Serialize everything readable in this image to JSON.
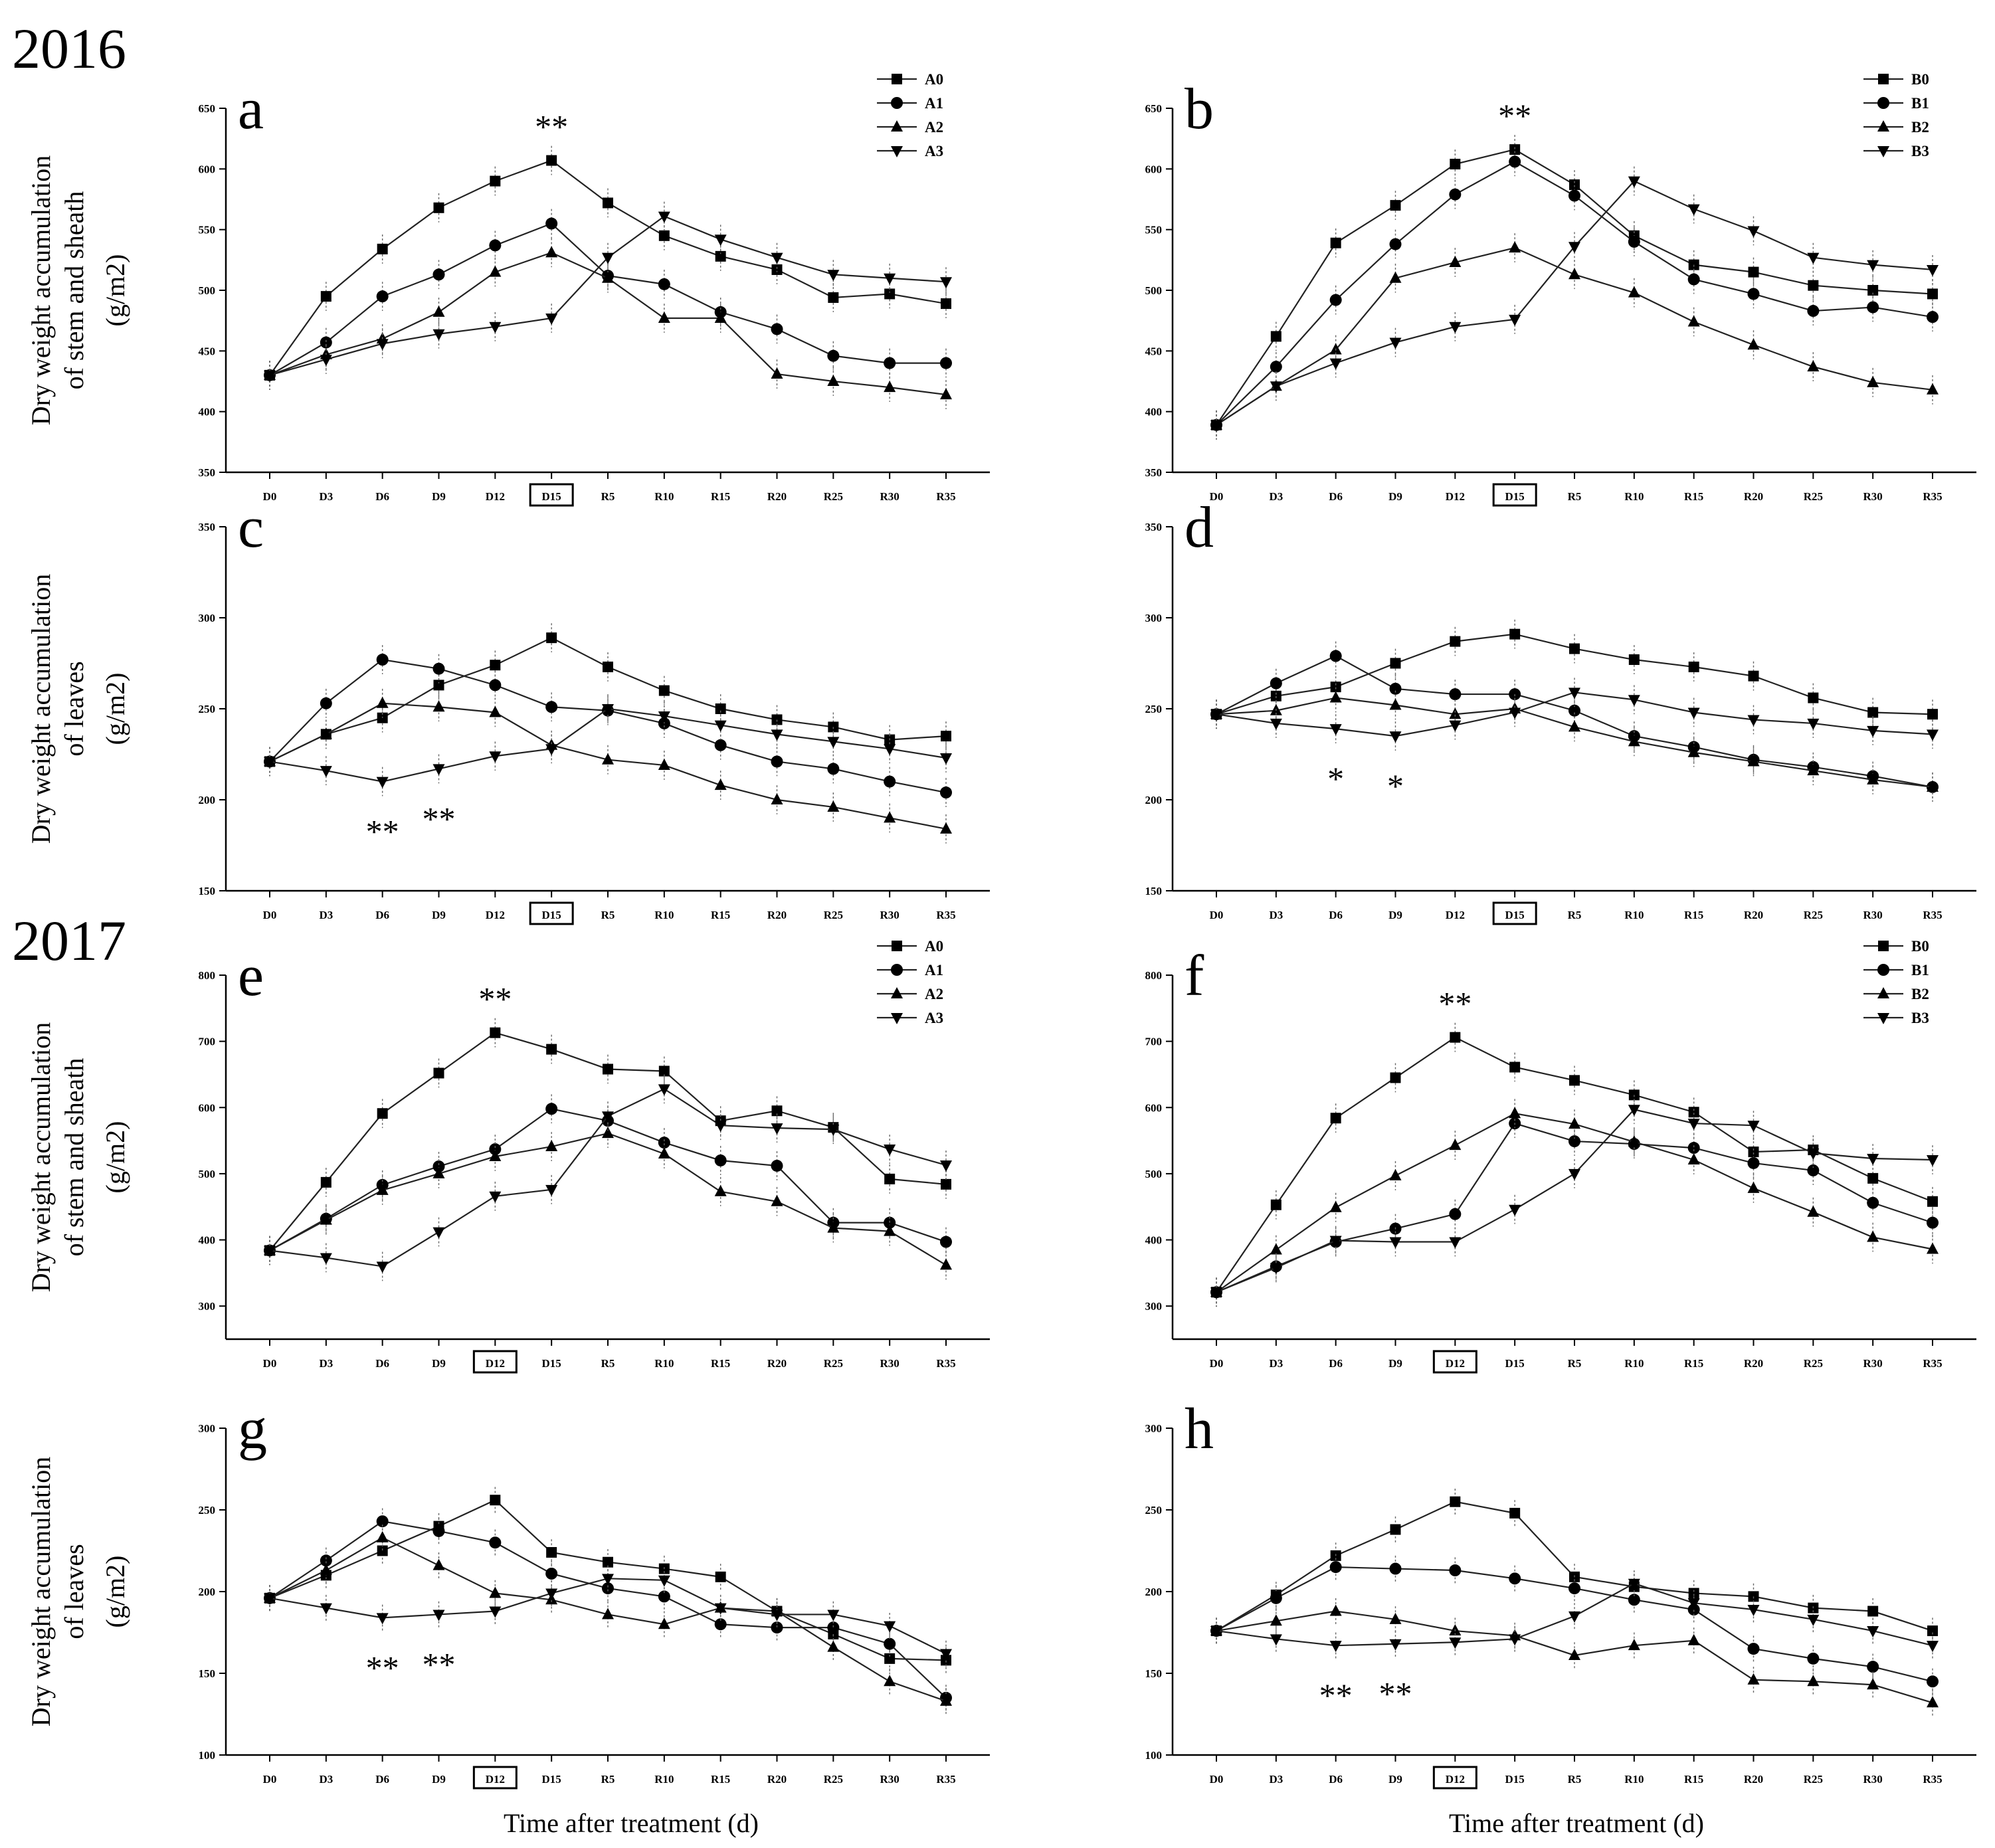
{
  "figure": {
    "years": [
      "2016",
      "2017"
    ],
    "xlabel": "Time after treatment (d)",
    "ylabel_stem": [
      "Dry weight accumulation",
      "of stem and sheath"
    ],
    "ylabel_leaves": [
      "Dry weight accumulation",
      "of leaves"
    ],
    "ylabel_unit": "(g/m2)"
  },
  "chart_data": [
    {
      "id": "a",
      "type": "line",
      "year": "2016",
      "ylim": [
        350,
        650
      ],
      "yticks": [
        350,
        400,
        450,
        500,
        550,
        600,
        650
      ],
      "categories": [
        "D0",
        "D3",
        "D6",
        "D9",
        "D12",
        "D15",
        "R5",
        "R10",
        "R15",
        "R20",
        "R25",
        "R30",
        "R35"
      ],
      "highlight": "D15",
      "legend": true,
      "series": [
        {
          "name": "A0",
          "marker": "square",
          "values": [
            430,
            495,
            534,
            568,
            590,
            607,
            572,
            545,
            528,
            517,
            494,
            497,
            489
          ]
        },
        {
          "name": "A1",
          "marker": "circle",
          "values": [
            430,
            457,
            495,
            513,
            537,
            555,
            512,
            505,
            482,
            468,
            446,
            440,
            440
          ]
        },
        {
          "name": "A2",
          "marker": "triangle-up",
          "values": [
            430,
            447,
            460,
            482,
            515,
            531,
            510,
            477,
            477,
            431,
            425,
            420,
            414
          ]
        },
        {
          "name": "A3",
          "marker": "triangle-down",
          "values": [
            430,
            443,
            456,
            464,
            470,
            477,
            527,
            561,
            542,
            527,
            513,
            510,
            507
          ]
        }
      ],
      "annotations": [
        {
          "text": "**",
          "at": "D15"
        }
      ]
    },
    {
      "id": "b",
      "type": "line",
      "year": "2016",
      "ylim": [
        350,
        650
      ],
      "yticks": [
        350,
        400,
        450,
        500,
        550,
        600,
        650
      ],
      "categories": [
        "D0",
        "D3",
        "D6",
        "D9",
        "D12",
        "D15",
        "R5",
        "R10",
        "R15",
        "R20",
        "R25",
        "R30",
        "R35"
      ],
      "highlight": "D15",
      "legend": true,
      "series": [
        {
          "name": "B0",
          "marker": "square",
          "values": [
            389,
            462,
            539,
            570,
            604,
            616,
            587,
            545,
            521,
            515,
            504,
            500,
            497
          ]
        },
        {
          "name": "B1",
          "marker": "circle",
          "values": [
            389,
            437,
            492,
            538,
            579,
            606,
            578,
            540,
            509,
            497,
            483,
            486,
            478
          ]
        },
        {
          "name": "B2",
          "marker": "triangle-up",
          "values": [
            389,
            421,
            451,
            510,
            523,
            535,
            513,
            498,
            474,
            455,
            437,
            424,
            418
          ]
        },
        {
          "name": "B3",
          "marker": "triangle-down",
          "values": [
            389,
            421,
            440,
            457,
            470,
            476,
            536,
            590,
            567,
            549,
            527,
            521,
            517
          ]
        }
      ],
      "annotations": [
        {
          "text": "**",
          "at": "D15"
        }
      ]
    },
    {
      "id": "c",
      "type": "line",
      "year": "2016",
      "ylim": [
        150,
        350
      ],
      "yticks": [
        150,
        200,
        250,
        300,
        350
      ],
      "categories": [
        "D0",
        "D3",
        "D6",
        "D9",
        "D12",
        "D15",
        "R5",
        "R10",
        "R15",
        "R20",
        "R25",
        "R30",
        "R35"
      ],
      "highlight": "D15",
      "legend": false,
      "series": [
        {
          "name": "A0",
          "marker": "square",
          "values": [
            221,
            236,
            245,
            263,
            274,
            289,
            273,
            260,
            250,
            244,
            240,
            233,
            235
          ]
        },
        {
          "name": "A1",
          "marker": "circle",
          "values": [
            221,
            253,
            277,
            272,
            263,
            251,
            249,
            242,
            230,
            221,
            217,
            210,
            204
          ]
        },
        {
          "name": "A2",
          "marker": "triangle-up",
          "values": [
            221,
            236,
            253,
            251,
            248,
            230,
            222,
            219,
            208,
            200,
            196,
            190,
            184
          ]
        },
        {
          "name": "A3",
          "marker": "triangle-down",
          "values": [
            221,
            216,
            210,
            217,
            224,
            228,
            250,
            246,
            241,
            236,
            232,
            228,
            223
          ]
        }
      ],
      "annotations": [
        {
          "text": "**",
          "at": "D6"
        },
        {
          "text": "**",
          "at": "D9"
        }
      ]
    },
    {
      "id": "d",
      "type": "line",
      "year": "2016",
      "ylim": [
        150,
        350
      ],
      "yticks": [
        150,
        200,
        250,
        300,
        350
      ],
      "categories": [
        "D0",
        "D3",
        "D6",
        "D9",
        "D12",
        "D15",
        "R5",
        "R10",
        "R15",
        "R20",
        "R25",
        "R30",
        "R35"
      ],
      "highlight": "D15",
      "legend": false,
      "series": [
        {
          "name": "B0",
          "marker": "square",
          "values": [
            247,
            257,
            262,
            275,
            287,
            291,
            283,
            277,
            273,
            268,
            256,
            248,
            247
          ]
        },
        {
          "name": "B1",
          "marker": "circle",
          "values": [
            247,
            264,
            279,
            261,
            258,
            258,
            249,
            235,
            229,
            222,
            218,
            213,
            207
          ]
        },
        {
          "name": "B2",
          "marker": "triangle-up",
          "values": [
            247,
            249,
            256,
            252,
            247,
            250,
            240,
            232,
            226,
            221,
            216,
            211,
            207
          ]
        },
        {
          "name": "B3",
          "marker": "triangle-down",
          "values": [
            247,
            242,
            239,
            235,
            241,
            248,
            259,
            255,
            248,
            244,
            242,
            238,
            236
          ]
        }
      ],
      "annotations": [
        {
          "text": "*",
          "at": "D6"
        },
        {
          "text": "*",
          "at": "D9"
        }
      ]
    },
    {
      "id": "e",
      "type": "line",
      "year": "2017",
      "ylim": [
        250,
        800
      ],
      "yticks": [
        300,
        400,
        500,
        600,
        700,
        800
      ],
      "categories": [
        "D0",
        "D3",
        "D6",
        "D9",
        "D12",
        "D15",
        "R5",
        "R10",
        "R15",
        "R20",
        "R25",
        "R30",
        "R35"
      ],
      "highlight": "D12",
      "legend": true,
      "series": [
        {
          "name": "A0",
          "marker": "square",
          "values": [
            384,
            487,
            591,
            652,
            713,
            688,
            658,
            655,
            580,
            595,
            570,
            492,
            484
          ]
        },
        {
          "name": "A1",
          "marker": "circle",
          "values": [
            384,
            432,
            483,
            511,
            537,
            598,
            580,
            547,
            520,
            512,
            426,
            426,
            397
          ]
        },
        {
          "name": "A2",
          "marker": "triangle-up",
          "values": [
            384,
            430,
            475,
            500,
            526,
            541,
            561,
            530,
            473,
            458,
            418,
            413,
            362
          ]
        },
        {
          "name": "A3",
          "marker": "triangle-down",
          "values": [
            384,
            373,
            360,
            412,
            466,
            476,
            587,
            628,
            573,
            569,
            567,
            537,
            513
          ]
        }
      ],
      "annotations": [
        {
          "text": "**",
          "at": "D12"
        }
      ]
    },
    {
      "id": "f",
      "type": "line",
      "year": "2017",
      "ylim": [
        250,
        800
      ],
      "yticks": [
        300,
        400,
        500,
        600,
        700,
        800
      ],
      "categories": [
        "D0",
        "D3",
        "D6",
        "D9",
        "D12",
        "D15",
        "R5",
        "R10",
        "R15",
        "R20",
        "R25",
        "R30",
        "R35"
      ],
      "highlight": "D12",
      "legend": true,
      "series": [
        {
          "name": "B0",
          "marker": "square",
          "values": [
            321,
            453,
            584,
            645,
            706,
            661,
            641,
            619,
            593,
            533,
            536,
            493,
            458
          ]
        },
        {
          "name": "B1",
          "marker": "circle",
          "values": [
            321,
            360,
            397,
            417,
            439,
            576,
            549,
            545,
            539,
            516,
            505,
            456,
            426
          ]
        },
        {
          "name": "B2",
          "marker": "triangle-up",
          "values": [
            321,
            385,
            449,
            497,
            543,
            591,
            575,
            548,
            521,
            478,
            442,
            404,
            386
          ]
        },
        {
          "name": "B3",
          "marker": "triangle-down",
          "values": [
            321,
            358,
            399,
            397,
            397,
            446,
            500,
            597,
            576,
            573,
            531,
            523,
            521
          ]
        }
      ],
      "annotations": [
        {
          "text": "**",
          "at": "D12"
        }
      ]
    },
    {
      "id": "g",
      "type": "line",
      "year": "2017",
      "ylim": [
        100,
        300
      ],
      "yticks": [
        100,
        150,
        200,
        250,
        300
      ],
      "categories": [
        "D0",
        "D3",
        "D6",
        "D9",
        "D12",
        "D15",
        "R5",
        "R10",
        "R15",
        "R20",
        "R25",
        "R30",
        "R35"
      ],
      "highlight": "D12",
      "legend": false,
      "series": [
        {
          "name": "A0",
          "marker": "square",
          "values": [
            196,
            210,
            225,
            240,
            256,
            224,
            218,
            214,
            209,
            188,
            174,
            159,
            158
          ]
        },
        {
          "name": "A1",
          "marker": "circle",
          "values": [
            196,
            219,
            243,
            237,
            230,
            211,
            202,
            197,
            180,
            178,
            178,
            168,
            135
          ]
        },
        {
          "name": "A2",
          "marker": "triangle-up",
          "values": [
            196,
            213,
            233,
            216,
            199,
            195,
            186,
            180,
            190,
            188,
            166,
            145,
            133
          ]
        },
        {
          "name": "A3",
          "marker": "triangle-down",
          "values": [
            196,
            190,
            184,
            186,
            188,
            199,
            208,
            207,
            190,
            186,
            186,
            179,
            162
          ]
        }
      ],
      "annotations": [
        {
          "text": "**",
          "at": "D6"
        },
        {
          "text": "**",
          "at": "D9"
        }
      ]
    },
    {
      "id": "h",
      "type": "line",
      "year": "2017",
      "ylim": [
        100,
        300
      ],
      "yticks": [
        100,
        150,
        200,
        250,
        300
      ],
      "categories": [
        "D0",
        "D3",
        "D6",
        "D9",
        "D12",
        "D15",
        "R5",
        "R10",
        "R15",
        "R20",
        "R25",
        "R30",
        "R35"
      ],
      "highlight": "D12",
      "legend": false,
      "series": [
        {
          "name": "B0",
          "marker": "square",
          "values": [
            176,
            198,
            222,
            238,
            255,
            248,
            209,
            203,
            199,
            197,
            190,
            188,
            176
          ]
        },
        {
          "name": "B1",
          "marker": "circle",
          "values": [
            176,
            196,
            215,
            214,
            213,
            208,
            202,
            195,
            189,
            165,
            159,
            154,
            145
          ]
        },
        {
          "name": "B2",
          "marker": "triangle-up",
          "values": [
            176,
            182,
            188,
            183,
            176,
            173,
            161,
            167,
            170,
            146,
            145,
            143,
            132
          ]
        },
        {
          "name": "B3",
          "marker": "triangle-down",
          "values": [
            176,
            171,
            167,
            168,
            169,
            171,
            185,
            205,
            193,
            189,
            183,
            176,
            167
          ]
        }
      ],
      "annotations": [
        {
          "text": "**",
          "at": "D6"
        },
        {
          "text": "**",
          "at": "D9"
        }
      ]
    }
  ]
}
